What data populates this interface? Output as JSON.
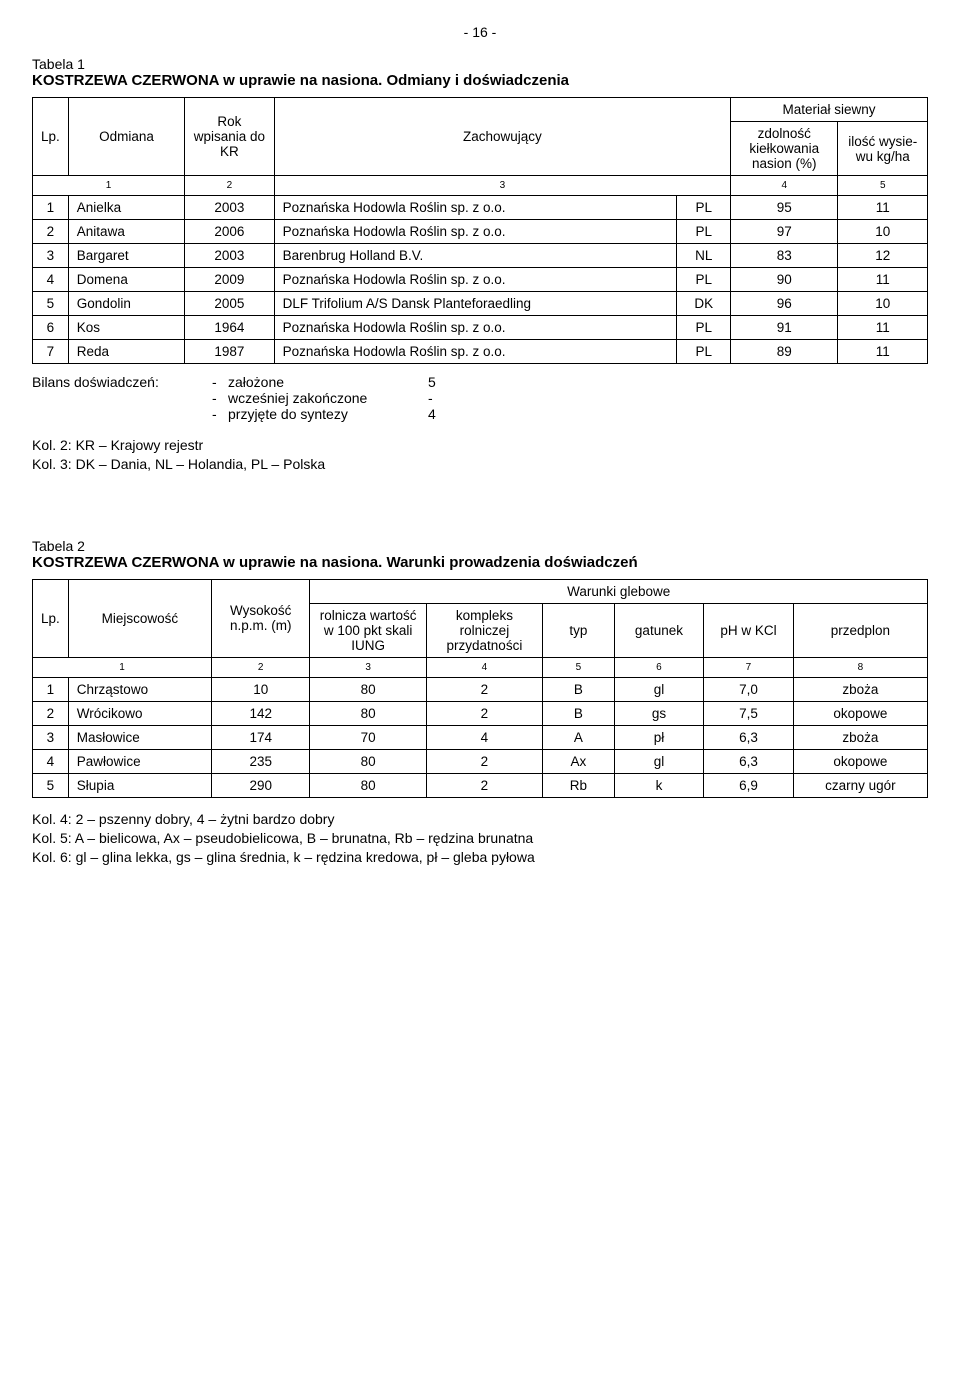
{
  "page_number": "- 16 -",
  "table1": {
    "label": "Tabela 1",
    "title": "KOSTRZEWA CZERWONA w uprawie na nasiona. Odmiany i doświadczenia",
    "headers": {
      "lp": "Lp.",
      "odmiana": "Odmiana",
      "rok": "Rok wpisania do KR",
      "zachowujacy": "Zachowujący",
      "material": "Materiał siewny",
      "zdolnosc": "zdolność kiełkowania nasion (%)",
      "ilosc": "ilość wysie-wu kg/ha"
    },
    "colnums": [
      "1",
      "2",
      "3",
      "4",
      "5"
    ],
    "rows": [
      {
        "n": "1",
        "name": "Anielka",
        "year": "2003",
        "keeper": "Poznańska Hodowla Roślin sp. z o.o.",
        "cc": "PL",
        "germ": "95",
        "rate": "11"
      },
      {
        "n": "2",
        "name": "Anitawa",
        "year": "2006",
        "keeper": "Poznańska Hodowla Roślin sp. z o.o.",
        "cc": "PL",
        "germ": "97",
        "rate": "10"
      },
      {
        "n": "3",
        "name": "Bargaret",
        "year": "2003",
        "keeper": "Barenbrug Holland B.V.",
        "cc": "NL",
        "germ": "83",
        "rate": "12"
      },
      {
        "n": "4",
        "name": "Domena",
        "year": "2009",
        "keeper": "Poznańska Hodowla Roślin sp. z o.o.",
        "cc": "PL",
        "germ": "90",
        "rate": "11"
      },
      {
        "n": "5",
        "name": "Gondolin",
        "year": "2005",
        "keeper": "DLF Trifolium A/S Dansk Planteforaedling",
        "cc": "DK",
        "germ": "96",
        "rate": "10"
      },
      {
        "n": "6",
        "name": "Kos",
        "year": "1964",
        "keeper": "Poznańska Hodowla Roślin sp. z o.o.",
        "cc": "PL",
        "germ": "91",
        "rate": "11"
      },
      {
        "n": "7",
        "name": "Reda",
        "year": "1987",
        "keeper": "Poznańska Hodowla Roślin sp. z o.o.",
        "cc": "PL",
        "germ": "89",
        "rate": "11"
      }
    ],
    "bilans": {
      "label": "Bilans doświadczeń:",
      "rows": [
        {
          "text": "założone",
          "val": "5"
        },
        {
          "text": "wcześniej zakończone",
          "val": "-"
        },
        {
          "text": "przyjęte do syntezy",
          "val": "4"
        }
      ]
    },
    "kol_notes": [
      "Kol. 2: KR – Krajowy rejestr",
      "Kol. 3: DK – Dania, NL – Holandia, PL – Polska"
    ]
  },
  "table2": {
    "label": "Tabela 2",
    "title": "KOSTRZEWA CZERWONA w uprawie na nasiona. Warunki prowadzenia doświadczeń",
    "headers": {
      "lp": "Lp.",
      "miejscowosc": "Miejscowość",
      "wysokosc": "Wysokość n.p.m. (m)",
      "warunki": "Warunki glebowe",
      "rolnicza": "rolnicza wartość w 100 pkt skali IUNG",
      "kompleks": "kompleks rolniczej przydatności",
      "typ": "typ",
      "gatunek": "gatunek",
      "ph": "pH w KCl",
      "przedplon": "przedplon"
    },
    "colnums": [
      "1",
      "2",
      "3",
      "4",
      "5",
      "6",
      "7",
      "8"
    ],
    "rows": [
      {
        "n": "1",
        "m": "Chrząstowo",
        "w": "10",
        "r": "80",
        "k": "2",
        "t": "B",
        "g": "gl",
        "p": "7,0",
        "pp": "zboża"
      },
      {
        "n": "2",
        "m": "Wrócikowo",
        "w": "142",
        "r": "80",
        "k": "2",
        "t": "B",
        "g": "gs",
        "p": "7,5",
        "pp": "okopowe"
      },
      {
        "n": "3",
        "m": "Masłowice",
        "w": "174",
        "r": "70",
        "k": "4",
        "t": "A",
        "g": "pł",
        "p": "6,3",
        "pp": "zboża"
      },
      {
        "n": "4",
        "m": "Pawłowice",
        "w": "235",
        "r": "80",
        "k": "2",
        "t": "Ax",
        "g": "gl",
        "p": "6,3",
        "pp": "okopowe"
      },
      {
        "n": "5",
        "m": "Słupia",
        "w": "290",
        "r": "80",
        "k": "2",
        "t": "Rb",
        "g": "k",
        "p": "6,9",
        "pp": "czarny ugór"
      }
    ],
    "footer_notes": [
      "Kol. 4:  2 – pszenny dobry, 4 – żytni bardzo dobry",
      "Kol. 5:  A – bielicowa, Ax – pseudobielicowa, B – brunatna, Rb – rędzina brunatna",
      "Kol. 6:  gl – glina lekka, gs – glina średnia, k – rędzina kredowa, pł – gleba pyłowa"
    ]
  },
  "col_widths": {
    "t1": {
      "lp": "4%",
      "name": "13%",
      "year": "10%",
      "keeper": "45%",
      "cc": "6%",
      "germ": "12%",
      "rate": "10%"
    },
    "t2": {
      "lp": "4%",
      "m": "16%",
      "w": "11%",
      "r": "13%",
      "k": "13%",
      "t": "8%",
      "g": "10%",
      "p": "10%",
      "pp": "15%"
    }
  }
}
